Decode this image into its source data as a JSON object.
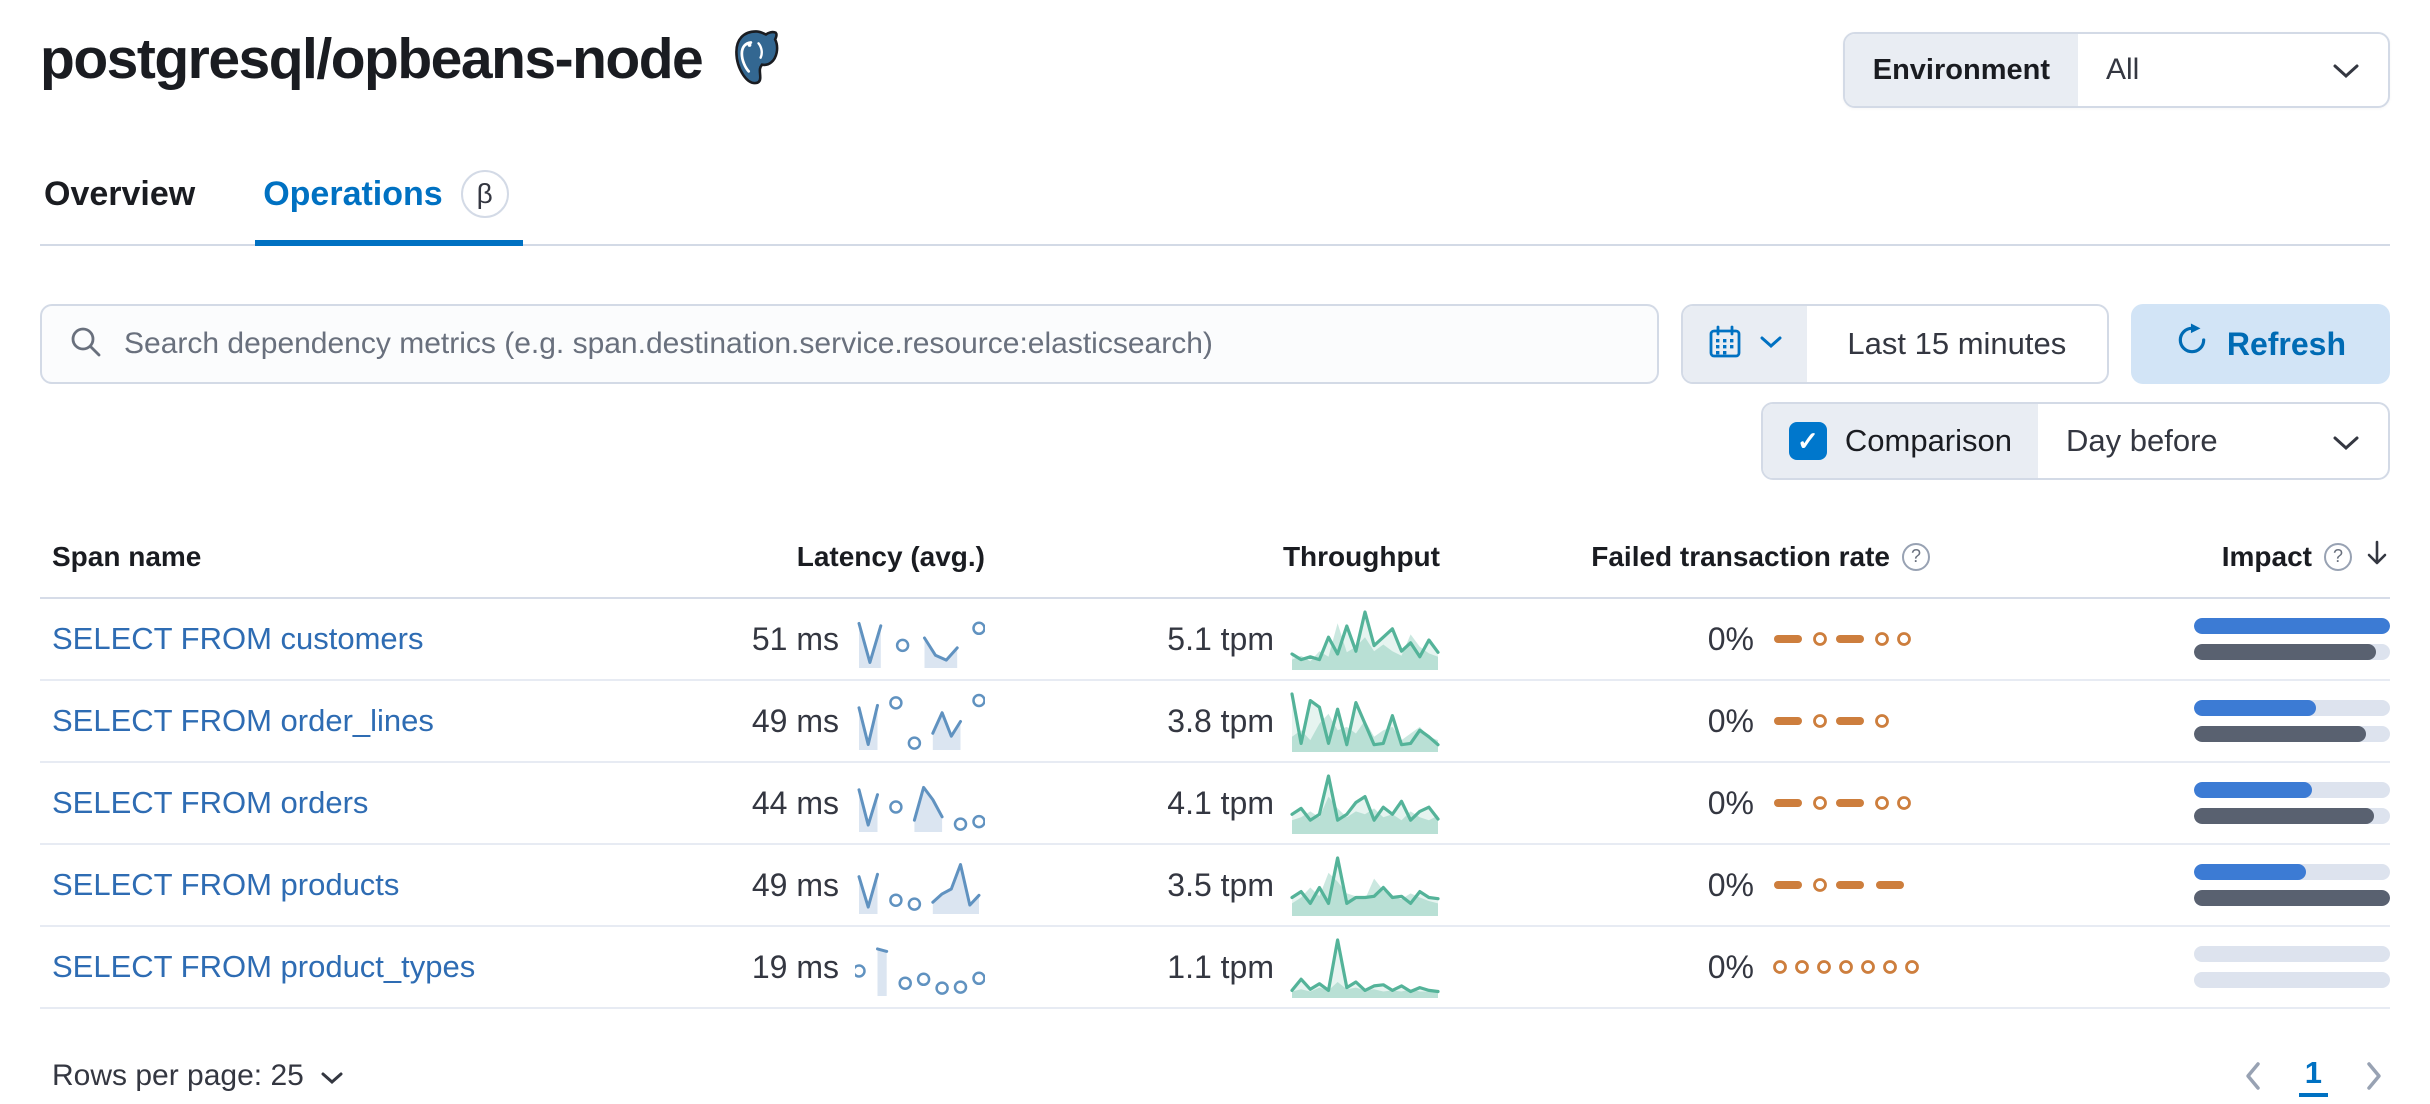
{
  "page": {
    "title": "postgresql/opbeans-node"
  },
  "environment": {
    "label": "Environment",
    "value": "All"
  },
  "tabs": [
    {
      "label": "Overview",
      "active": false
    },
    {
      "label": "Operations",
      "active": true,
      "badge": "β"
    }
  ],
  "toolbar": {
    "search_placeholder": "Search dependency metrics (e.g. span.destination.service.resource:elasticsearch)",
    "time_range": "Last 15 minutes",
    "refresh_label": "Refresh",
    "comparison_label": "Comparison",
    "comparison_checked": true,
    "comparison_value": "Day before"
  },
  "icons": {
    "help": "?",
    "check": "✓"
  },
  "table": {
    "columns": [
      {
        "label": "Span name"
      },
      {
        "label": "Latency (avg.)"
      },
      {
        "label": "Throughput"
      },
      {
        "label": "Failed transaction rate",
        "help_icon": true
      },
      {
        "label": "Impact",
        "help_icon": true,
        "sorted": "desc"
      }
    ],
    "rows": [
      {
        "span_name": "SELECT FROM customers",
        "latency": "51 ms",
        "throughput": "5.1 tpm",
        "failed_rate": "0%",
        "latency_spark": [
          85,
          5,
          80,
          null,
          40,
          null,
          55,
          20,
          10,
          35,
          null,
          75
        ],
        "throughput_spark": {
          "current": [
            25,
            15,
            20,
            15,
            55,
            25,
            75,
            30,
            100,
            40,
            55,
            70,
            30,
            45,
            20,
            50,
            28
          ],
          "previous": [
            15,
            22,
            12,
            30,
            20,
            80,
            28,
            38,
            55,
            30,
            42,
            30,
            22,
            60,
            38,
            26,
            20
          ]
        },
        "failed_spark": [
          "dash",
          "dot",
          "dash",
          "dot",
          "dot"
        ],
        "impact_current_pct": 100,
        "impact_previous_pct": 93
      },
      {
        "span_name": "SELECT FROM order_lines",
        "latency": "49 ms",
        "throughput": "3.8 tpm",
        "failed_rate": "0%",
        "latency_spark": [
          80,
          5,
          85,
          null,
          90,
          null,
          8,
          null,
          28,
          70,
          22,
          52,
          null,
          95
        ],
        "throughput_spark": {
          "current": [
            85,
            10,
            75,
            65,
            10,
            62,
            8,
            72,
            40,
            8,
            10,
            52,
            8,
            10,
            30,
            20,
            8
          ],
          "previous": [
            20,
            30,
            15,
            40,
            55,
            30,
            35,
            25,
            45,
            20,
            30,
            35,
            15,
            25,
            35,
            20,
            15
          ]
        },
        "failed_spark": [
          "dash",
          "dot",
          "dash",
          "dot"
        ],
        "impact_current_pct": 62,
        "impact_previous_pct": 88
      },
      {
        "span_name": "SELECT FROM orders",
        "latency": "44 ms",
        "throughput": "4.1 tpm",
        "failed_rate": "0%",
        "latency_spark": [
          80,
          8,
          70,
          null,
          45,
          null,
          18,
          85,
          60,
          25,
          null,
          10,
          null,
          15
        ],
        "throughput_spark": {
          "current": [
            30,
            40,
            20,
            30,
            95,
            20,
            30,
            50,
            60,
            20,
            42,
            30,
            52,
            20,
            35,
            42,
            22
          ],
          "previous": [
            20,
            25,
            35,
            25,
            60,
            40,
            25,
            35,
            30,
            40,
            25,
            30,
            20,
            35,
            25,
            20,
            28
          ]
        },
        "failed_spark": [
          "dash",
          "dot",
          "dash",
          "dot",
          "dot"
        ],
        "impact_current_pct": 60,
        "impact_previous_pct": 92
      },
      {
        "span_name": "SELECT FROM products",
        "latency": "49 ms",
        "throughput": "3.5 tpm",
        "failed_rate": "0%",
        "latency_spark": [
          70,
          8,
          75,
          null,
          22,
          null,
          14,
          null,
          18,
          35,
          45,
          95,
          12,
          32
        ],
        "throughput_spark": {
          "current": [
            28,
            38,
            18,
            45,
            18,
            95,
            18,
            28,
            28,
            30,
            45,
            28,
            30,
            18,
            38,
            28,
            26
          ],
          "previous": [
            18,
            28,
            45,
            30,
            70,
            55,
            35,
            30,
            25,
            60,
            40,
            30,
            25,
            35,
            28,
            22,
            18
          ]
        },
        "failed_spark": [
          "dash",
          "dot",
          "dash",
          "dash"
        ],
        "impact_current_pct": 57,
        "impact_previous_pct": 100
      },
      {
        "span_name": "SELECT FROM product_types",
        "latency": "19 ms",
        "throughput": "1.1 tpm",
        "failed_rate": "0%",
        "latency_spark": [
          45,
          null,
          90,
          85,
          null,
          20,
          null,
          28,
          null,
          10,
          null,
          12,
          null,
          30
        ],
        "throughput_spark": {
          "current": [
            10,
            30,
            12,
            22,
            10,
            100,
            15,
            25,
            10,
            18,
            20,
            10,
            18,
            8,
            15,
            10,
            8
          ],
          "previous": [
            8,
            12,
            8,
            15,
            10,
            25,
            12,
            15,
            10,
            12,
            8,
            10,
            8,
            12,
            8,
            8,
            6
          ]
        },
        "failed_spark": [
          "dot",
          "dot",
          "dot",
          "dot",
          "dot",
          "dot",
          "dot"
        ],
        "impact_current_pct": 0,
        "impact_previous_pct": 0
      }
    ]
  },
  "footer": {
    "rows_per_page": "Rows per page: 25",
    "page": "1"
  },
  "colors": {
    "primary": "#0071c2",
    "link": "#2e6cb3",
    "latency_line": "#6092c0",
    "latency_fill": "#dbe5f1",
    "throughput": "#54b399",
    "failed": "#cd7e3d",
    "impact_current": "#3c7bd4",
    "impact_previous": "#596170",
    "impact_track": "#dde3ee"
  }
}
